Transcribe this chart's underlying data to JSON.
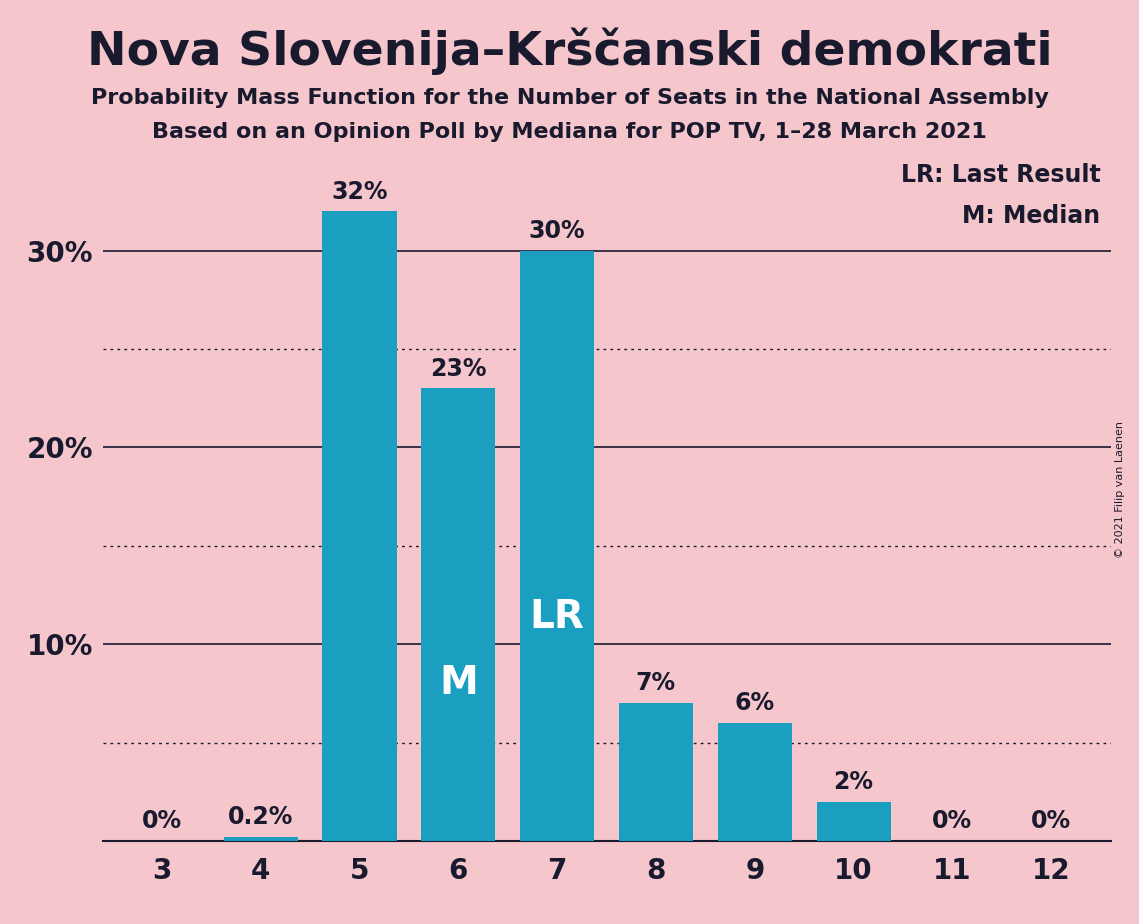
{
  "title": "Nova Slovenija–Krščanski demokrati",
  "subtitle1": "Probability Mass Function for the Number of Seats in the National Assembly",
  "subtitle2": "Based on an Opinion Poll by Mediana for POP TV, 1–28 March 2021",
  "copyright": "© 2021 Filip van Laenen",
  "categories": [
    3,
    4,
    5,
    6,
    7,
    8,
    9,
    10,
    11,
    12
  ],
  "values": [
    0.0,
    0.2,
    32.0,
    23.0,
    30.0,
    7.0,
    6.0,
    2.0,
    0.0,
    0.0
  ],
  "bar_color": "#1a9fc0",
  "background_color": "#f5c6cb",
  "text_color": "#1a1a2e",
  "median_bar_value": 6,
  "lr_bar_value": 7,
  "legend_lr": "LR: Last Result",
  "legend_m": "M: Median",
  "ylim": [
    0,
    35
  ],
  "solid_grid_ticks": [
    10,
    20,
    30
  ],
  "dotted_grid_ticks": [
    5,
    15,
    25
  ],
  "ytick_positions": [
    10,
    20,
    30
  ],
  "ytick_labels": [
    "10%",
    "20%",
    "30%"
  ]
}
